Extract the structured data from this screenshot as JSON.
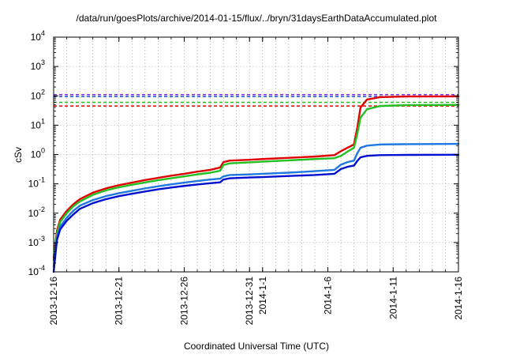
{
  "chart_data": {
    "type": "line",
    "title": "/data/run/goesPlots/archive/2014-01-15/flux/../bryn/31daysEarthDataAccumulated.plot",
    "xlabel": "Coordinated Universal Time (UTC)",
    "ylabel": "cSv",
    "y_scale": "log",
    "ylim": [
      0.0001,
      10000
    ],
    "xlim": [
      "2013-12-16",
      "2014-01-16"
    ],
    "x_ticks": [
      "2013-12-16",
      "2013-12-21",
      "2013-12-26",
      "2013-12-31",
      "2014-1-1",
      "2014-1-6",
      "2014-1-11",
      "2014-1-16"
    ],
    "x_tick_dates": [
      "2013-12-16",
      "2013-12-21",
      "2013-12-26",
      "2013-12-31",
      "2014-01-01",
      "2014-01-06",
      "2014-01-11",
      "2014-01-16"
    ],
    "y_ticks": [
      {
        "value": 0.0001,
        "base": "10",
        "exp": "-4"
      },
      {
        "value": 0.001,
        "base": "10",
        "exp": "-3"
      },
      {
        "value": 0.01,
        "base": "10",
        "exp": "-2"
      },
      {
        "value": 0.1,
        "base": "10",
        "exp": "-1"
      },
      {
        "value": 1,
        "base": "10",
        "exp": "0"
      },
      {
        "value": 10,
        "base": "10",
        "exp": "1"
      },
      {
        "value": 100,
        "base": "10",
        "exp": "2"
      },
      {
        "value": 1000,
        "base": "10",
        "exp": "3"
      },
      {
        "value": 10000,
        "base": "10",
        "exp": "4"
      }
    ],
    "grid": true,
    "thresholds": [
      {
        "value": 110,
        "color": "#8a2be2"
      },
      {
        "value": 95,
        "color": "#1e5ad8"
      },
      {
        "value": 60,
        "color": "#22c022"
      },
      {
        "value": 45,
        "color": "#e00000"
      }
    ],
    "series": [
      {
        "color": "#e00000",
        "points": [
          [
            "2013-12-16 00:00",
            0.0003
          ],
          [
            "2013-12-16 06:00",
            0.0025
          ],
          [
            "2013-12-16 12:00",
            0.006
          ],
          [
            "2013-12-17 00:00",
            0.012
          ],
          [
            "2013-12-17 12:00",
            0.02
          ],
          [
            "2013-12-18 00:00",
            0.03
          ],
          [
            "2013-12-19 00:00",
            0.05
          ],
          [
            "2013-12-20 00:00",
            0.07
          ],
          [
            "2013-12-21 00:00",
            0.09
          ],
          [
            "2013-12-22 00:00",
            0.11
          ],
          [
            "2013-12-23 00:00",
            0.135
          ],
          [
            "2013-12-24 00:00",
            0.16
          ],
          [
            "2013-12-25 00:00",
            0.19
          ],
          [
            "2013-12-26 00:00",
            0.22
          ],
          [
            "2013-12-27 00:00",
            0.26
          ],
          [
            "2013-12-28 00:00",
            0.3
          ],
          [
            "2013-12-28 18:00",
            0.36
          ],
          [
            "2013-12-29 00:00",
            0.55
          ],
          [
            "2013-12-29 12:00",
            0.62
          ],
          [
            "2013-12-31 00:00",
            0.66
          ],
          [
            "2014-01-01 00:00",
            0.7
          ],
          [
            "2014-01-03 00:00",
            0.77
          ],
          [
            "2014-01-05 00:00",
            0.85
          ],
          [
            "2014-01-06 12:00",
            0.95
          ],
          [
            "2014-01-07 00:00",
            1.3
          ],
          [
            "2014-01-07 12:00",
            1.7
          ],
          [
            "2014-01-08 00:00",
            2.2
          ],
          [
            "2014-01-08 06:00",
            8
          ],
          [
            "2014-01-08 12:00",
            40
          ],
          [
            "2014-01-09 00:00",
            75
          ],
          [
            "2014-01-10 00:00",
            90
          ],
          [
            "2014-01-12 00:00",
            95
          ],
          [
            "2014-01-16 00:00",
            96
          ]
        ]
      },
      {
        "color": "#22c022",
        "points": [
          [
            "2013-12-16 00:00",
            0.00025
          ],
          [
            "2013-12-16 06:00",
            0.002
          ],
          [
            "2013-12-16 12:00",
            0.005
          ],
          [
            "2013-12-17 00:00",
            0.01
          ],
          [
            "2013-12-17 12:00",
            0.017
          ],
          [
            "2013-12-18 00:00",
            0.025
          ],
          [
            "2013-12-19 00:00",
            0.042
          ],
          [
            "2013-12-20 00:00",
            0.06
          ],
          [
            "2013-12-21 00:00",
            0.076
          ],
          [
            "2013-12-22 00:00",
            0.093
          ],
          [
            "2013-12-23 00:00",
            0.112
          ],
          [
            "2013-12-24 00:00",
            0.133
          ],
          [
            "2013-12-25 00:00",
            0.155
          ],
          [
            "2013-12-26 00:00",
            0.18
          ],
          [
            "2013-12-27 00:00",
            0.21
          ],
          [
            "2013-12-28 00:00",
            0.24
          ],
          [
            "2013-12-28 18:00",
            0.28
          ],
          [
            "2013-12-29 00:00",
            0.44
          ],
          [
            "2013-12-29 12:00",
            0.5
          ],
          [
            "2013-12-31 00:00",
            0.54
          ],
          [
            "2014-01-01 00:00",
            0.57
          ],
          [
            "2014-01-03 00:00",
            0.63
          ],
          [
            "2014-01-05 00:00",
            0.7
          ],
          [
            "2014-01-06 12:00",
            0.75
          ],
          [
            "2014-01-07 00:00",
            0.9
          ],
          [
            "2014-01-07 12:00",
            1.25
          ],
          [
            "2014-01-08 00:00",
            1.7
          ],
          [
            "2014-01-08 06:00",
            5
          ],
          [
            "2014-01-08 12:00",
            18
          ],
          [
            "2014-01-09 00:00",
            35
          ],
          [
            "2014-01-10 00:00",
            45
          ],
          [
            "2014-01-12 00:00",
            48
          ],
          [
            "2014-01-16 00:00",
            49
          ]
        ]
      },
      {
        "color": "#1e78e0",
        "points": [
          [
            "2013-12-16 00:00",
            0.00015
          ],
          [
            "2013-12-16 06:00",
            0.0015
          ],
          [
            "2013-12-16 12:00",
            0.0035
          ],
          [
            "2013-12-17 00:00",
            0.007
          ],
          [
            "2013-12-17 12:00",
            0.012
          ],
          [
            "2013-12-18 00:00",
            0.018
          ],
          [
            "2013-12-19 00:00",
            0.028
          ],
          [
            "2013-12-20 00:00",
            0.038
          ],
          [
            "2013-12-21 00:00",
            0.048
          ],
          [
            "2013-12-22 00:00",
            0.058
          ],
          [
            "2013-12-23 00:00",
            0.07
          ],
          [
            "2013-12-24 00:00",
            0.083
          ],
          [
            "2013-12-25 00:00",
            0.096
          ],
          [
            "2013-12-26 00:00",
            0.11
          ],
          [
            "2013-12-27 00:00",
            0.125
          ],
          [
            "2013-12-28 00:00",
            0.14
          ],
          [
            "2013-12-28 18:00",
            0.15
          ],
          [
            "2013-12-29 00:00",
            0.18
          ],
          [
            "2013-12-29 12:00",
            0.2
          ],
          [
            "2013-12-31 00:00",
            0.21
          ],
          [
            "2014-01-01 00:00",
            0.22
          ],
          [
            "2014-01-03 00:00",
            0.24
          ],
          [
            "2014-01-05 00:00",
            0.27
          ],
          [
            "2014-01-06 12:00",
            0.3
          ],
          [
            "2014-01-07 00:00",
            0.45
          ],
          [
            "2014-01-07 12:00",
            0.55
          ],
          [
            "2014-01-08 00:00",
            0.62
          ],
          [
            "2014-01-08 06:00",
            1.1
          ],
          [
            "2014-01-08 12:00",
            1.7
          ],
          [
            "2014-01-09 00:00",
            2.0
          ],
          [
            "2014-01-10 00:00",
            2.2
          ],
          [
            "2014-01-12 00:00",
            2.25
          ],
          [
            "2014-01-16 00:00",
            2.3
          ]
        ]
      },
      {
        "color": "#0010d0",
        "points": [
          [
            "2013-12-16 00:00",
            0.0001
          ],
          [
            "2013-12-16 06:00",
            0.0012
          ],
          [
            "2013-12-16 12:00",
            0.0028
          ],
          [
            "2013-12-17 00:00",
            0.0055
          ],
          [
            "2013-12-17 12:00",
            0.009
          ],
          [
            "2013-12-18 00:00",
            0.014
          ],
          [
            "2013-12-19 00:00",
            0.022
          ],
          [
            "2013-12-20 00:00",
            0.03
          ],
          [
            "2013-12-21 00:00",
            0.038
          ],
          [
            "2013-12-22 00:00",
            0.046
          ],
          [
            "2013-12-23 00:00",
            0.055
          ],
          [
            "2013-12-24 00:00",
            0.065
          ],
          [
            "2013-12-25 00:00",
            0.075
          ],
          [
            "2013-12-26 00:00",
            0.085
          ],
          [
            "2013-12-27 00:00",
            0.095
          ],
          [
            "2013-12-28 00:00",
            0.105
          ],
          [
            "2013-12-28 18:00",
            0.113
          ],
          [
            "2013-12-29 00:00",
            0.14
          ],
          [
            "2013-12-29 12:00",
            0.155
          ],
          [
            "2013-12-31 00:00",
            0.165
          ],
          [
            "2014-01-01 00:00",
            0.17
          ],
          [
            "2014-01-03 00:00",
            0.185
          ],
          [
            "2014-01-05 00:00",
            0.2
          ],
          [
            "2014-01-06 12:00",
            0.22
          ],
          [
            "2014-01-07 00:00",
            0.32
          ],
          [
            "2014-01-07 12:00",
            0.38
          ],
          [
            "2014-01-08 00:00",
            0.42
          ],
          [
            "2014-01-08 06:00",
            0.6
          ],
          [
            "2014-01-08 12:00",
            0.8
          ],
          [
            "2014-01-09 00:00",
            0.9
          ],
          [
            "2014-01-10 00:00",
            0.95
          ],
          [
            "2014-01-12 00:00",
            0.97
          ],
          [
            "2014-01-16 00:00",
            0.98
          ]
        ]
      }
    ]
  }
}
